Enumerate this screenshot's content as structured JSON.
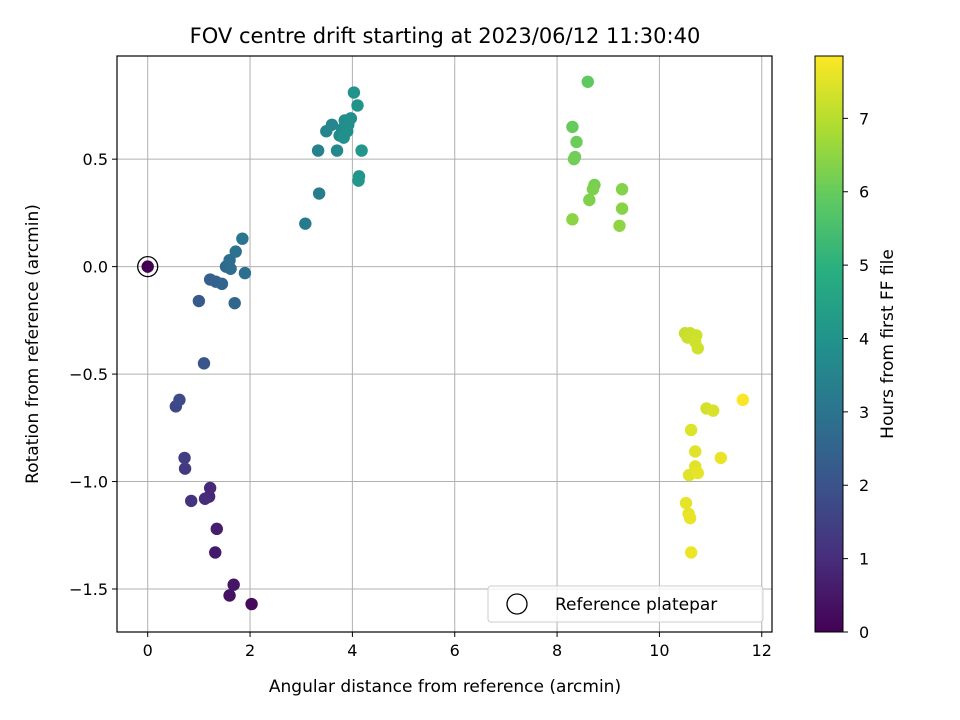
{
  "chart_data": {
    "type": "scatter",
    "title": "FOV centre drift starting at 2023/06/12 11:30:40",
    "xlabel": "Angular distance from reference (arcmin)",
    "ylabel": "Rotation from reference (arcmin)",
    "xlim": [
      -0.6,
      12.2
    ],
    "ylim": [
      -1.7,
      0.98
    ],
    "xticks": [
      0,
      2,
      4,
      6,
      8,
      10,
      12
    ],
    "xtick_labels": [
      "0",
      "2",
      "4",
      "6",
      "8",
      "10",
      "12"
    ],
    "yticks": [
      -1.5,
      -1.0,
      -0.5,
      0.0,
      0.5
    ],
    "ytick_labels": [
      "−1.5",
      "−1.0",
      "−0.5",
      "0.0",
      "0.5"
    ],
    "grid": true,
    "colormap": "viridis",
    "colorbar": {
      "label": "Hours from first FF file",
      "range": [
        0,
        7.85
      ],
      "ticks": [
        0,
        1,
        2,
        3,
        4,
        5,
        6,
        7
      ],
      "tick_labels": [
        "0",
        "1",
        "2",
        "3",
        "4",
        "5",
        "6",
        "7"
      ]
    },
    "legend": {
      "position": "lower-right",
      "label": "Reference platepar",
      "marker": "open-circle"
    },
    "reference_point": {
      "x": 0,
      "y": 0
    },
    "points": [
      {
        "x": 0.0,
        "y": 0.0,
        "t": 0.0
      },
      {
        "x": 2.03,
        "y": -1.57,
        "t": 0.2
      },
      {
        "x": 1.6,
        "y": -1.53,
        "t": 0.35
      },
      {
        "x": 1.68,
        "y": -1.48,
        "t": 0.45
      },
      {
        "x": 1.32,
        "y": -1.33,
        "t": 0.55
      },
      {
        "x": 1.35,
        "y": -1.22,
        "t": 0.65
      },
      {
        "x": 1.2,
        "y": -1.07,
        "t": 0.8
      },
      {
        "x": 1.22,
        "y": -1.03,
        "t": 0.9
      },
      {
        "x": 1.12,
        "y": -1.08,
        "t": 1.0
      },
      {
        "x": 0.85,
        "y": -1.09,
        "t": 1.15
      },
      {
        "x": 0.73,
        "y": -0.94,
        "t": 1.3
      },
      {
        "x": 0.72,
        "y": -0.89,
        "t": 1.4
      },
      {
        "x": 0.55,
        "y": -0.65,
        "t": 1.7
      },
      {
        "x": 0.62,
        "y": -0.62,
        "t": 1.8
      },
      {
        "x": 1.1,
        "y": -0.45,
        "t": 2.05
      },
      {
        "x": 1.0,
        "y": -0.16,
        "t": 2.2
      },
      {
        "x": 1.22,
        "y": -0.06,
        "t": 2.35
      },
      {
        "x": 1.33,
        "y": -0.07,
        "t": 2.45
      },
      {
        "x": 1.45,
        "y": -0.08,
        "t": 2.55
      },
      {
        "x": 1.7,
        "y": -0.17,
        "t": 2.6
      },
      {
        "x": 1.53,
        "y": 0.0,
        "t": 2.65
      },
      {
        "x": 1.62,
        "y": -0.01,
        "t": 2.75
      },
      {
        "x": 1.6,
        "y": 0.03,
        "t": 2.8
      },
      {
        "x": 1.9,
        "y": -0.03,
        "t": 2.85
      },
      {
        "x": 1.72,
        "y": 0.07,
        "t": 2.95
      },
      {
        "x": 1.85,
        "y": 0.13,
        "t": 3.05
      },
      {
        "x": 3.08,
        "y": 0.2,
        "t": 3.2
      },
      {
        "x": 3.35,
        "y": 0.34,
        "t": 3.3
      },
      {
        "x": 3.33,
        "y": 0.54,
        "t": 3.45
      },
      {
        "x": 3.49,
        "y": 0.63,
        "t": 3.55
      },
      {
        "x": 3.6,
        "y": 0.66,
        "t": 3.6
      },
      {
        "x": 3.7,
        "y": 0.54,
        "t": 3.65
      },
      {
        "x": 3.75,
        "y": 0.61,
        "t": 3.7
      },
      {
        "x": 3.8,
        "y": 0.64,
        "t": 3.75
      },
      {
        "x": 3.85,
        "y": 0.68,
        "t": 3.8
      },
      {
        "x": 3.92,
        "y": 0.66,
        "t": 3.82
      },
      {
        "x": 3.97,
        "y": 0.69,
        "t": 3.85
      },
      {
        "x": 3.83,
        "y": 0.6,
        "t": 3.88
      },
      {
        "x": 3.9,
        "y": 0.63,
        "t": 3.9
      },
      {
        "x": 4.03,
        "y": 0.81,
        "t": 3.95
      },
      {
        "x": 4.1,
        "y": 0.75,
        "t": 4.0
      },
      {
        "x": 4.13,
        "y": 0.42,
        "t": 4.05
      },
      {
        "x": 4.12,
        "y": 0.4,
        "t": 4.08
      },
      {
        "x": 4.18,
        "y": 0.54,
        "t": 4.1
      },
      {
        "x": 8.6,
        "y": 0.86,
        "t": 5.9
      },
      {
        "x": 8.3,
        "y": 0.65,
        "t": 6.0
      },
      {
        "x": 8.38,
        "y": 0.58,
        "t": 6.05
      },
      {
        "x": 8.35,
        "y": 0.51,
        "t": 6.1
      },
      {
        "x": 8.33,
        "y": 0.5,
        "t": 6.12
      },
      {
        "x": 8.73,
        "y": 0.38,
        "t": 6.2
      },
      {
        "x": 8.7,
        "y": 0.36,
        "t": 6.25
      },
      {
        "x": 8.63,
        "y": 0.31,
        "t": 6.3
      },
      {
        "x": 9.27,
        "y": 0.36,
        "t": 6.35
      },
      {
        "x": 9.27,
        "y": 0.27,
        "t": 6.4
      },
      {
        "x": 8.3,
        "y": 0.22,
        "t": 6.45
      },
      {
        "x": 9.22,
        "y": 0.19,
        "t": 6.5
      },
      {
        "x": 10.5,
        "y": -0.31,
        "t": 7.15
      },
      {
        "x": 10.6,
        "y": -0.31,
        "t": 7.2
      },
      {
        "x": 10.55,
        "y": -0.33,
        "t": 7.22
      },
      {
        "x": 10.72,
        "y": -0.32,
        "t": 7.25
      },
      {
        "x": 10.7,
        "y": -0.35,
        "t": 7.28
      },
      {
        "x": 10.75,
        "y": -0.38,
        "t": 7.3
      },
      {
        "x": 10.92,
        "y": -0.66,
        "t": 7.35
      },
      {
        "x": 11.05,
        "y": -0.67,
        "t": 7.4
      },
      {
        "x": 11.63,
        "y": -0.62,
        "t": 7.8
      },
      {
        "x": 10.62,
        "y": -0.76,
        "t": 7.45
      },
      {
        "x": 10.7,
        "y": -0.86,
        "t": 7.5
      },
      {
        "x": 11.2,
        "y": -0.89,
        "t": 7.6
      },
      {
        "x": 10.7,
        "y": -0.93,
        "t": 7.52
      },
      {
        "x": 10.75,
        "y": -0.96,
        "t": 7.55
      },
      {
        "x": 10.58,
        "y": -0.97,
        "t": 7.5
      },
      {
        "x": 10.52,
        "y": -1.1,
        "t": 7.56
      },
      {
        "x": 10.57,
        "y": -1.15,
        "t": 7.58
      },
      {
        "x": 10.6,
        "y": -1.17,
        "t": 7.6
      },
      {
        "x": 10.62,
        "y": -1.33,
        "t": 7.65
      }
    ]
  }
}
